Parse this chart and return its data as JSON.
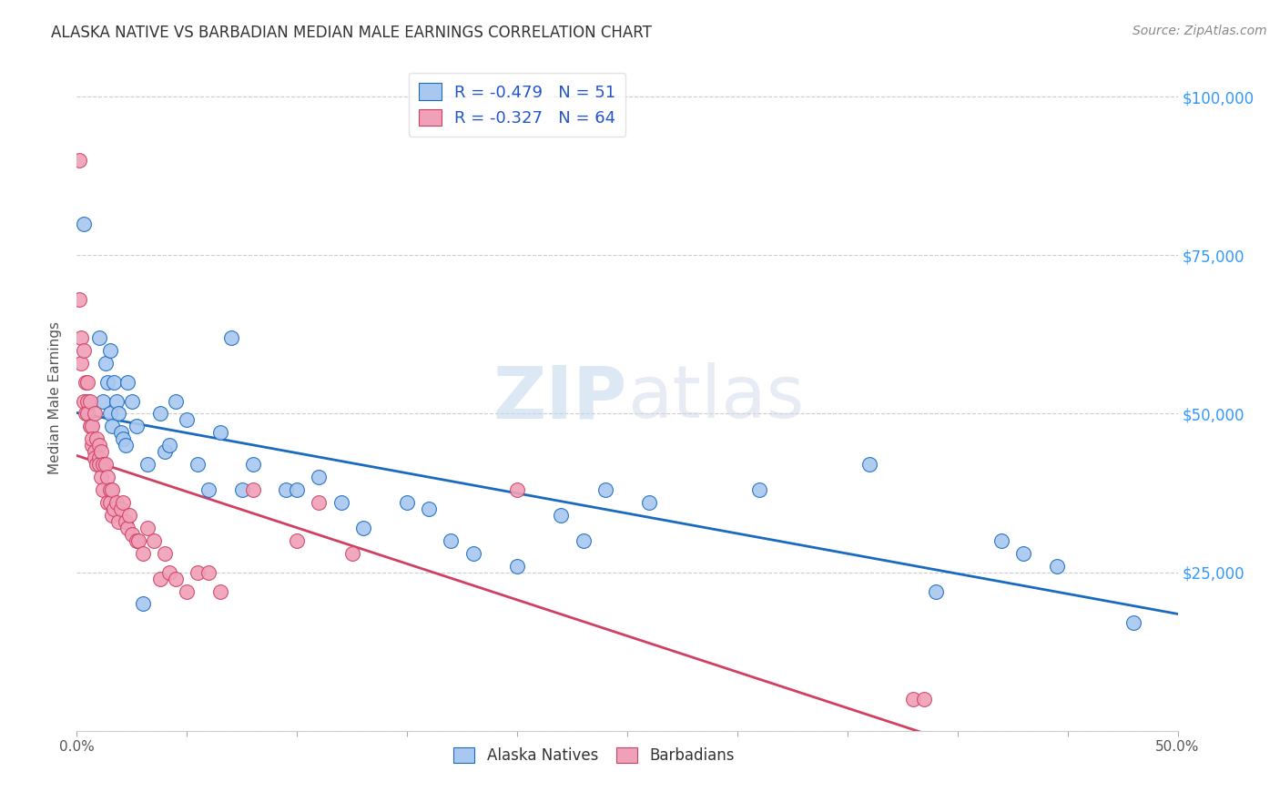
{
  "title": "ALASKA NATIVE VS BARBADIAN MEDIAN MALE EARNINGS CORRELATION CHART",
  "source": "Source: ZipAtlas.com",
  "ylabel": "Median Male Earnings",
  "xlim": [
    0.0,
    0.5
  ],
  "ylim": [
    0,
    105000
  ],
  "yticks": [
    0,
    25000,
    50000,
    75000,
    100000
  ],
  "xticks": [
    0.0,
    0.05,
    0.1,
    0.15,
    0.2,
    0.25,
    0.3,
    0.35,
    0.4,
    0.45,
    0.5
  ],
  "xtick_labels": [
    "0.0%",
    "",
    "",
    "",
    "",
    "",
    "",
    "",
    "",
    "",
    "50.0%"
  ],
  "legend_r1": "-0.479",
  "legend_n1": "51",
  "legend_r2": "-0.327",
  "legend_n2": "64",
  "color_blue": "#a8c8f0",
  "color_pink": "#f0a0b8",
  "color_line_blue": "#1a6ac0",
  "color_line_pink": "#d04060",
  "watermark_zip": "ZIP",
  "watermark_atlas": "atlas",
  "alaska_x": [
    0.003,
    0.01,
    0.012,
    0.013,
    0.014,
    0.015,
    0.015,
    0.016,
    0.017,
    0.018,
    0.019,
    0.02,
    0.021,
    0.022,
    0.023,
    0.025,
    0.027,
    0.03,
    0.032,
    0.038,
    0.04,
    0.042,
    0.045,
    0.05,
    0.055,
    0.06,
    0.065,
    0.07,
    0.075,
    0.08,
    0.095,
    0.1,
    0.11,
    0.12,
    0.13,
    0.15,
    0.16,
    0.17,
    0.18,
    0.2,
    0.22,
    0.23,
    0.24,
    0.26,
    0.31,
    0.36,
    0.39,
    0.42,
    0.43,
    0.445,
    0.48
  ],
  "alaska_y": [
    80000,
    62000,
    52000,
    58000,
    55000,
    50000,
    60000,
    48000,
    55000,
    52000,
    50000,
    47000,
    46000,
    45000,
    55000,
    52000,
    48000,
    20000,
    42000,
    50000,
    44000,
    45000,
    52000,
    49000,
    42000,
    38000,
    47000,
    62000,
    38000,
    42000,
    38000,
    38000,
    40000,
    36000,
    32000,
    36000,
    35000,
    30000,
    28000,
    26000,
    34000,
    30000,
    38000,
    36000,
    38000,
    42000,
    22000,
    30000,
    28000,
    26000,
    17000
  ],
  "barbadian_x": [
    0.001,
    0.001,
    0.002,
    0.002,
    0.003,
    0.003,
    0.004,
    0.004,
    0.005,
    0.005,
    0.005,
    0.006,
    0.006,
    0.007,
    0.007,
    0.007,
    0.008,
    0.008,
    0.008,
    0.009,
    0.009,
    0.01,
    0.01,
    0.01,
    0.011,
    0.011,
    0.012,
    0.012,
    0.013,
    0.014,
    0.014,
    0.015,
    0.015,
    0.016,
    0.016,
    0.017,
    0.018,
    0.019,
    0.02,
    0.021,
    0.022,
    0.023,
    0.024,
    0.025,
    0.027,
    0.028,
    0.03,
    0.032,
    0.035,
    0.038,
    0.04,
    0.042,
    0.045,
    0.05,
    0.055,
    0.06,
    0.065,
    0.08,
    0.1,
    0.11,
    0.125,
    0.2,
    0.38,
    0.385
  ],
  "barbadian_y": [
    90000,
    68000,
    62000,
    58000,
    60000,
    52000,
    55000,
    50000,
    55000,
    52000,
    50000,
    52000,
    48000,
    48000,
    45000,
    46000,
    50000,
    44000,
    43000,
    46000,
    42000,
    45000,
    43000,
    42000,
    44000,
    40000,
    42000,
    38000,
    42000,
    40000,
    36000,
    38000,
    36000,
    38000,
    34000,
    35000,
    36000,
    33000,
    35000,
    36000,
    33000,
    32000,
    34000,
    31000,
    30000,
    30000,
    28000,
    32000,
    30000,
    24000,
    28000,
    25000,
    24000,
    22000,
    25000,
    25000,
    22000,
    38000,
    30000,
    36000,
    28000,
    38000,
    5000,
    5000
  ]
}
